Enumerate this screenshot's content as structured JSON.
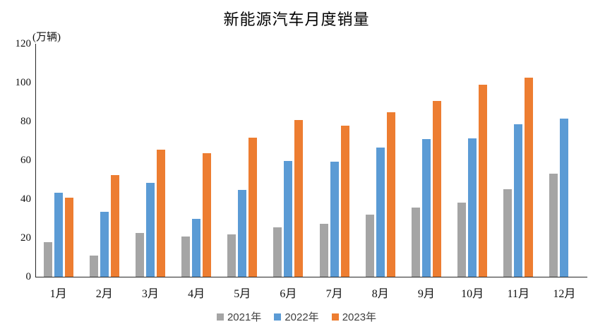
{
  "chart_data": {
    "type": "bar",
    "title": "新能源汽车月度销量",
    "unit_label": "(万辆)",
    "categories": [
      "1月",
      "2月",
      "3月",
      "4月",
      "5月",
      "6月",
      "7月",
      "8月",
      "9月",
      "10月",
      "11月",
      "12月"
    ],
    "series": [
      {
        "name": "2021年",
        "color": "#A5A5A5",
        "values": [
          17.9,
          11.0,
          22.6,
          20.6,
          21.7,
          25.6,
          27.1,
          32.1,
          35.7,
          38.3,
          45.0,
          53.1
        ]
      },
      {
        "name": "2022年",
        "color": "#5B9BD5",
        "values": [
          43.1,
          33.4,
          48.4,
          29.9,
          44.7,
          59.6,
          59.3,
          66.6,
          70.8,
          71.4,
          78.6,
          81.4
        ]
      },
      {
        "name": "2023年",
        "color": "#ED7D31",
        "values": [
          40.8,
          52.5,
          65.3,
          63.6,
          71.7,
          80.6,
          78.0,
          84.6,
          90.4,
          99.0,
          102.6,
          null
        ]
      }
    ],
    "ylim": [
      0,
      120
    ],
    "ytick_step": 20,
    "grid": false,
    "legend_position": "bottom",
    "axis_color": "#262626",
    "background_color": "#FFFFFF"
  }
}
